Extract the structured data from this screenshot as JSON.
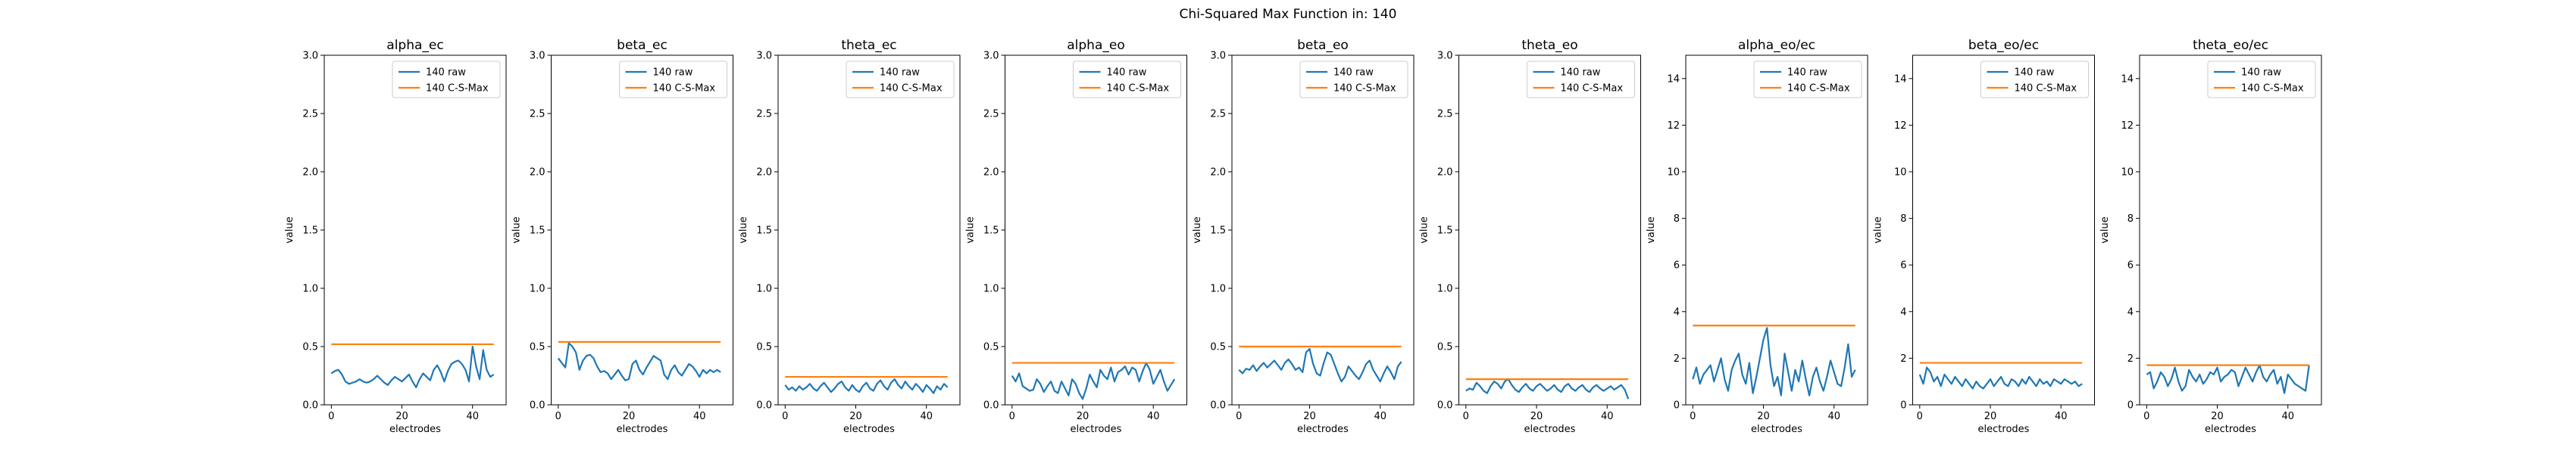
{
  "figure": {
    "title": "Chi-Squared Max Function in: 140"
  },
  "legend": {
    "raw": "140 raw",
    "cs_max": "140 C-S-Max",
    "position": "upper right"
  },
  "colors": {
    "raw": "#1f77b4",
    "cs_max": "#ff7f0e",
    "axes": "#000000",
    "background": "#ffffff"
  },
  "chart_data": [
    {
      "type": "line",
      "title": "alpha_ec",
      "xlabel": "electrodes",
      "ylabel": "value",
      "xlim": [
        -2,
        49.5
      ],
      "ylim": [
        0,
        3.0
      ],
      "xticks": [
        0,
        20,
        40
      ],
      "yticks": [
        "0.0",
        "0.5",
        "1.0",
        "1.5",
        "2.0",
        "2.5",
        "3.0"
      ],
      "grid": false,
      "series": [
        {
          "name": "140 raw",
          "x_start": 0,
          "values": [
            0.27,
            0.29,
            0.3,
            0.26,
            0.2,
            0.18,
            0.19,
            0.2,
            0.22,
            0.2,
            0.19,
            0.2,
            0.22,
            0.25,
            0.22,
            0.19,
            0.17,
            0.21,
            0.24,
            0.22,
            0.2,
            0.23,
            0.26,
            0.2,
            0.15,
            0.22,
            0.27,
            0.24,
            0.21,
            0.3,
            0.34,
            0.28,
            0.2,
            0.29,
            0.35,
            0.37,
            0.38,
            0.35,
            0.3,
            0.2,
            0.5,
            0.33,
            0.22,
            0.47,
            0.3,
            0.24,
            0.26
          ]
        },
        {
          "name": "140 C-S-Max",
          "x": [
            0,
            46
          ],
          "values": [
            0.52,
            0.52
          ]
        }
      ]
    },
    {
      "type": "line",
      "title": "beta_ec",
      "xlabel": "electrodes",
      "ylabel": "value",
      "xlim": [
        -2,
        49.5
      ],
      "ylim": [
        0,
        3.0
      ],
      "xticks": [
        0,
        20,
        40
      ],
      "yticks": [
        "0.0",
        "0.5",
        "1.0",
        "1.5",
        "2.0",
        "2.5",
        "3.0"
      ],
      "grid": false,
      "series": [
        {
          "name": "140 raw",
          "x_start": 0,
          "values": [
            0.4,
            0.36,
            0.32,
            0.53,
            0.5,
            0.45,
            0.3,
            0.38,
            0.42,
            0.43,
            0.4,
            0.33,
            0.28,
            0.29,
            0.27,
            0.22,
            0.26,
            0.3,
            0.25,
            0.21,
            0.22,
            0.35,
            0.38,
            0.3,
            0.26,
            0.32,
            0.37,
            0.42,
            0.4,
            0.38,
            0.26,
            0.22,
            0.3,
            0.34,
            0.28,
            0.25,
            0.3,
            0.35,
            0.33,
            0.29,
            0.24,
            0.3,
            0.27,
            0.3,
            0.28,
            0.3,
            0.28
          ]
        },
        {
          "name": "140 C-S-Max",
          "x": [
            0,
            46
          ],
          "values": [
            0.54,
            0.54
          ]
        }
      ]
    },
    {
      "type": "line",
      "title": "theta_ec",
      "xlabel": "electrodes",
      "ylabel": "value",
      "xlim": [
        -2,
        49.5
      ],
      "ylim": [
        0,
        3.0
      ],
      "xticks": [
        0,
        20,
        40
      ],
      "yticks": [
        "0.0",
        "0.5",
        "1.0",
        "1.5",
        "2.0",
        "2.5",
        "3.0"
      ],
      "grid": false,
      "series": [
        {
          "name": "140 raw",
          "x_start": 0,
          "values": [
            0.17,
            0.13,
            0.15,
            0.12,
            0.16,
            0.13,
            0.15,
            0.18,
            0.14,
            0.12,
            0.16,
            0.19,
            0.15,
            0.11,
            0.14,
            0.18,
            0.2,
            0.15,
            0.12,
            0.17,
            0.13,
            0.11,
            0.16,
            0.19,
            0.14,
            0.12,
            0.18,
            0.21,
            0.16,
            0.13,
            0.19,
            0.22,
            0.17,
            0.14,
            0.2,
            0.16,
            0.13,
            0.18,
            0.15,
            0.11,
            0.17,
            0.14,
            0.1,
            0.16,
            0.13,
            0.18,
            0.15
          ]
        },
        {
          "name": "140 C-S-Max",
          "x": [
            0,
            46
          ],
          "values": [
            0.24,
            0.24
          ]
        }
      ]
    },
    {
      "type": "line",
      "title": "alpha_eo",
      "xlabel": "electrodes",
      "ylabel": "value",
      "xlim": [
        -2,
        49.5
      ],
      "ylim": [
        0,
        3.0
      ],
      "xticks": [
        0,
        20,
        40
      ],
      "yticks": [
        "0.0",
        "0.5",
        "1.0",
        "1.5",
        "2.0",
        "2.5",
        "3.0"
      ],
      "grid": false,
      "series": [
        {
          "name": "140 raw",
          "x_start": 0,
          "values": [
            0.25,
            0.2,
            0.27,
            0.16,
            0.14,
            0.12,
            0.13,
            0.22,
            0.18,
            0.11,
            0.16,
            0.2,
            0.12,
            0.1,
            0.2,
            0.14,
            0.08,
            0.22,
            0.18,
            0.1,
            0.05,
            0.14,
            0.26,
            0.2,
            0.15,
            0.3,
            0.25,
            0.22,
            0.32,
            0.2,
            0.28,
            0.3,
            0.33,
            0.26,
            0.32,
            0.3,
            0.2,
            0.29,
            0.36,
            0.3,
            0.18,
            0.24,
            0.3,
            0.2,
            0.12,
            0.17,
            0.22
          ]
        },
        {
          "name": "140 C-S-Max",
          "x": [
            0,
            46
          ],
          "values": [
            0.36,
            0.36
          ]
        }
      ]
    },
    {
      "type": "line",
      "title": "beta_eo",
      "xlabel": "electrodes",
      "ylabel": "value",
      "xlim": [
        -2,
        49.5
      ],
      "ylim": [
        0,
        3.0
      ],
      "xticks": [
        0,
        20,
        40
      ],
      "yticks": [
        "0.0",
        "0.5",
        "1.0",
        "1.5",
        "2.0",
        "2.5",
        "3.0"
      ],
      "grid": false,
      "series": [
        {
          "name": "140 raw",
          "x_start": 0,
          "values": [
            0.3,
            0.27,
            0.31,
            0.3,
            0.34,
            0.29,
            0.33,
            0.36,
            0.32,
            0.35,
            0.38,
            0.34,
            0.3,
            0.36,
            0.39,
            0.35,
            0.3,
            0.32,
            0.28,
            0.45,
            0.48,
            0.35,
            0.27,
            0.25,
            0.36,
            0.45,
            0.43,
            0.35,
            0.27,
            0.2,
            0.24,
            0.33,
            0.29,
            0.25,
            0.22,
            0.28,
            0.35,
            0.38,
            0.3,
            0.25,
            0.2,
            0.27,
            0.33,
            0.28,
            0.22,
            0.33,
            0.37
          ]
        },
        {
          "name": "140 C-S-Max",
          "x": [
            0,
            46
          ],
          "values": [
            0.5,
            0.5
          ]
        }
      ]
    },
    {
      "type": "line",
      "title": "theta_eo",
      "xlabel": "electrodes",
      "ylabel": "value",
      "xlim": [
        -2,
        49.5
      ],
      "ylim": [
        0,
        3.0
      ],
      "xticks": [
        0,
        20,
        40
      ],
      "yticks": [
        "0.0",
        "0.5",
        "1.0",
        "1.5",
        "2.0",
        "2.5",
        "3.0"
      ],
      "grid": false,
      "series": [
        {
          "name": "140 raw",
          "x_start": 0,
          "values": [
            0.12,
            0.14,
            0.13,
            0.19,
            0.16,
            0.12,
            0.1,
            0.16,
            0.2,
            0.18,
            0.14,
            0.2,
            0.22,
            0.17,
            0.13,
            0.11,
            0.15,
            0.18,
            0.14,
            0.12,
            0.16,
            0.18,
            0.15,
            0.12,
            0.14,
            0.17,
            0.13,
            0.11,
            0.16,
            0.18,
            0.14,
            0.12,
            0.15,
            0.17,
            0.13,
            0.11,
            0.15,
            0.17,
            0.14,
            0.12,
            0.14,
            0.16,
            0.13,
            0.15,
            0.17,
            0.13,
            0.05
          ]
        },
        {
          "name": "140 C-S-Max",
          "x": [
            0,
            46
          ],
          "values": [
            0.22,
            0.22
          ]
        }
      ]
    },
    {
      "type": "line",
      "title": "alpha_eo/ec",
      "xlabel": "electrodes",
      "ylabel": "value",
      "xlim": [
        -2,
        49.5
      ],
      "ylim": [
        0,
        15
      ],
      "xticks": [
        0,
        20,
        40
      ],
      "yticks": [
        "0",
        "2",
        "4",
        "6",
        "8",
        "10",
        "12",
        "14"
      ],
      "grid": false,
      "series": [
        {
          "name": "140 raw",
          "x_start": 0,
          "values": [
            1.1,
            1.6,
            0.9,
            1.3,
            1.5,
            1.7,
            1.0,
            1.5,
            2.0,
            1.1,
            0.6,
            1.5,
            1.9,
            2.2,
            1.3,
            0.9,
            1.8,
            0.5,
            1.2,
            2.0,
            2.8,
            3.3,
            1.7,
            0.8,
            1.2,
            0.4,
            2.2,
            1.4,
            0.6,
            1.5,
            1.0,
            1.9,
            1.1,
            0.4,
            1.2,
            1.6,
            1.0,
            0.6,
            1.2,
            1.9,
            1.4,
            0.9,
            0.8,
            1.6,
            2.6,
            1.2,
            1.5
          ]
        },
        {
          "name": "140 C-S-Max",
          "x": [
            0,
            46
          ],
          "values": [
            3.4,
            3.4
          ]
        }
      ]
    },
    {
      "type": "line",
      "title": "beta_eo/ec",
      "xlabel": "electrodes",
      "ylabel": "value",
      "xlim": [
        -2,
        49.5
      ],
      "ylim": [
        0,
        15
      ],
      "xticks": [
        0,
        20,
        40
      ],
      "yticks": [
        "0",
        "2",
        "4",
        "6",
        "8",
        "10",
        "12",
        "14"
      ],
      "grid": false,
      "series": [
        {
          "name": "140 raw",
          "x_start": 0,
          "values": [
            1.3,
            0.9,
            1.6,
            1.4,
            1.0,
            1.2,
            0.8,
            1.3,
            1.1,
            0.9,
            1.2,
            1.0,
            0.8,
            1.1,
            0.9,
            0.7,
            1.0,
            0.8,
            0.7,
            0.9,
            1.1,
            0.8,
            1.0,
            1.2,
            0.9,
            0.8,
            1.1,
            1.0,
            0.8,
            1.1,
            0.9,
            1.2,
            1.0,
            0.8,
            1.1,
            0.9,
            1.0,
            0.8,
            1.1,
            1.0,
            0.9,
            1.1,
            1.0,
            0.9,
            1.0,
            0.8,
            0.9
          ]
        },
        {
          "name": "140 C-S-Max",
          "x": [
            0,
            46
          ],
          "values": [
            1.8,
            1.8
          ]
        }
      ]
    },
    {
      "type": "line",
      "title": "theta_eo/ec",
      "xlabel": "electrodes",
      "ylabel": "value",
      "xlim": [
        -2,
        49.5
      ],
      "ylim": [
        0,
        15
      ],
      "xticks": [
        0,
        20,
        40
      ],
      "yticks": [
        "0",
        "2",
        "4",
        "6",
        "8",
        "10",
        "12",
        "14"
      ],
      "grid": false,
      "series": [
        {
          "name": "140 raw",
          "x_start": 0,
          "values": [
            1.3,
            1.4,
            0.7,
            1.0,
            1.4,
            1.2,
            0.8,
            1.1,
            1.6,
            1.0,
            0.6,
            0.8,
            1.5,
            1.2,
            1.0,
            1.3,
            0.9,
            1.1,
            1.4,
            1.3,
            1.6,
            1.0,
            1.2,
            1.3,
            1.5,
            1.4,
            0.8,
            1.2,
            1.6,
            1.3,
            1.0,
            1.4,
            1.7,
            1.2,
            1.0,
            1.3,
            1.5,
            0.9,
            1.2,
            0.5,
            1.3,
            1.1,
            0.9,
            0.8,
            0.7,
            0.6,
            1.7
          ]
        },
        {
          "name": "140 C-S-Max",
          "x": [
            0,
            46
          ],
          "values": [
            1.7,
            1.7
          ]
        }
      ]
    }
  ]
}
